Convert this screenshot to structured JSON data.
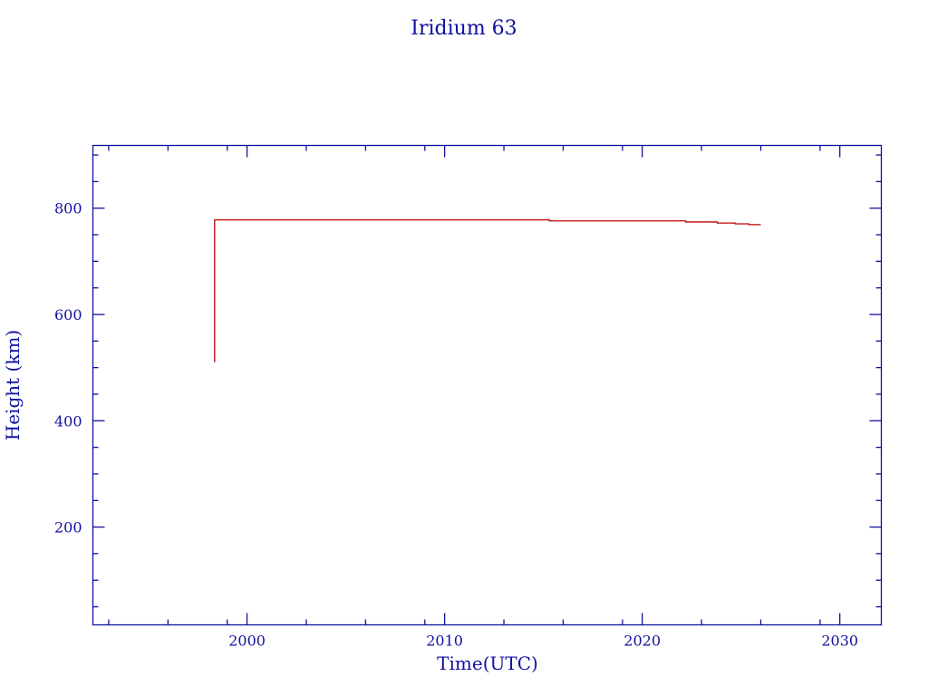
{
  "chart_data": {
    "type": "line",
    "title": "Iridium 63",
    "xlabel": "Time(UTC)",
    "ylabel": "Height (km)",
    "xlim": [
      1992.2,
      2032.1
    ],
    "ylim": [
      16,
      918
    ],
    "xticks": [
      2000,
      2010,
      2020,
      2030
    ],
    "xtick_labels": [
      "2000",
      "2010",
      "2020",
      "2030"
    ],
    "yticks": [
      200,
      400,
      600,
      800
    ],
    "ytick_labels": [
      "200",
      "400",
      "600",
      "800"
    ],
    "grid": false,
    "step": "post",
    "series": [
      {
        "x": [
          1998.34,
          1998.36,
          2015.3,
          2022.2,
          2023.8,
          2024.7,
          2025.4,
          2026.0
        ],
        "y": [
          511,
          778,
          776,
          774,
          772,
          770.5,
          769,
          769
        ],
        "color": "#c00000"
      }
    ],
    "axis_color": "#1010a0",
    "text_color": "#1010a0"
  }
}
